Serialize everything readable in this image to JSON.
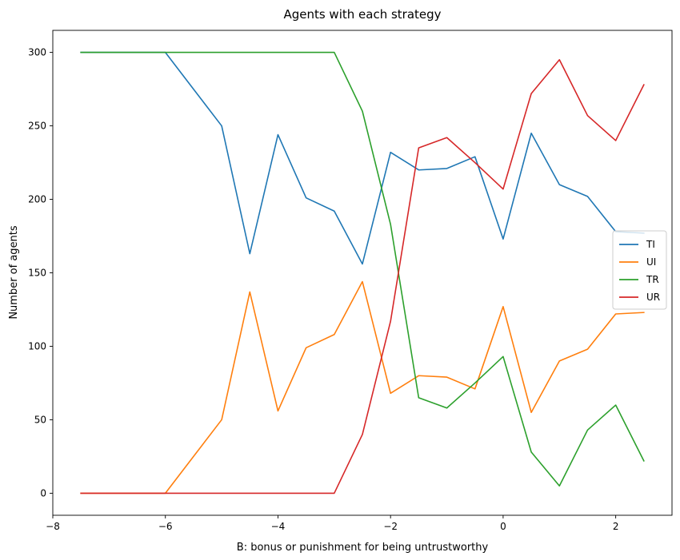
{
  "chart_data": {
    "type": "line",
    "title": "Agents with each strategy",
    "xlabel": "B: bonus or punishment for being untrustworthy",
    "ylabel": "Number of agents",
    "xlim": [
      -8,
      3
    ],
    "ylim": [
      -15,
      315
    ],
    "xticks": [
      -8,
      -6,
      -4,
      -2,
      0,
      2
    ],
    "yticks": [
      0,
      50,
      100,
      150,
      200,
      250,
      300
    ],
    "grid": false,
    "legend_position": "center-right",
    "x": [
      -7.5,
      -7,
      -6.5,
      -6,
      -5.5,
      -5,
      -4.5,
      -4,
      -3.5,
      -3,
      -2.5,
      -2,
      -1.5,
      -1,
      -0.5,
      0,
      0.5,
      1,
      1.5,
      2,
      2.5
    ],
    "series": [
      {
        "name": "TI",
        "color": "#1f77b4",
        "values": [
          300,
          300,
          300,
          300,
          275,
          250,
          163,
          244,
          201,
          192,
          156,
          232,
          220,
          221,
          229,
          173,
          245,
          210,
          202,
          178,
          177
        ]
      },
      {
        "name": "UI",
        "color": "#ff7f0e",
        "values": [
          0,
          0,
          0,
          0,
          25,
          50,
          137,
          56,
          99,
          108,
          144,
          68,
          80,
          79,
          71,
          127,
          55,
          90,
          98,
          122,
          123
        ]
      },
      {
        "name": "TR",
        "color": "#2ca02c",
        "values": [
          300,
          300,
          300,
          300,
          300,
          300,
          300,
          300,
          300,
          300,
          260,
          183,
          65,
          58,
          75,
          93,
          28,
          5,
          43,
          60,
          22
        ]
      },
      {
        "name": "UR",
        "color": "#d62728",
        "values": [
          0,
          0,
          0,
          0,
          0,
          0,
          0,
          0,
          0,
          0,
          40,
          117,
          235,
          242,
          225,
          207,
          272,
          295,
          257,
          240,
          278
        ]
      }
    ]
  }
}
